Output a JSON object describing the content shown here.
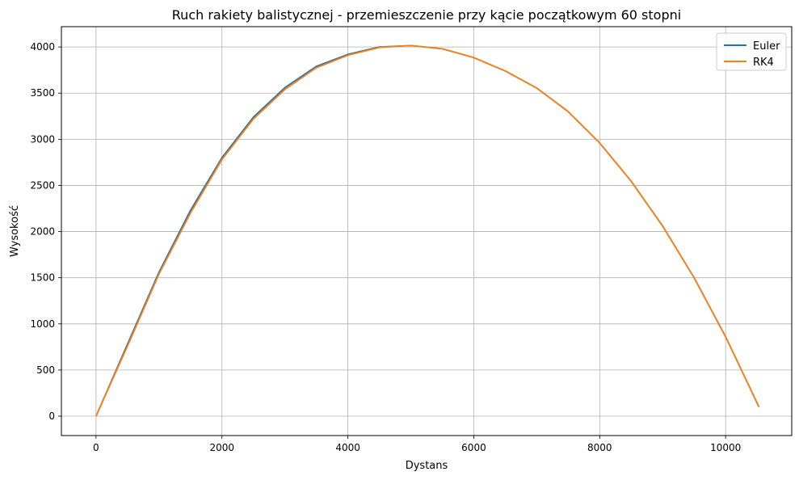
{
  "chart_data": {
    "type": "line",
    "title": "Ruch rakiety balistycznej - przemieszczenie przy kącie początkowym 60 stopni",
    "xlabel": "Dystans",
    "ylabel": "Wysokość",
    "xlim": [
      -550,
      11050
    ],
    "ylim": [
      -210,
      4220
    ],
    "xticks": [
      0,
      2000,
      4000,
      6000,
      8000,
      10000
    ],
    "yticks": [
      0,
      500,
      1000,
      1500,
      2000,
      2500,
      3000,
      3500,
      4000
    ],
    "grid": true,
    "legend_position": "top-right",
    "series": [
      {
        "name": "Euler",
        "color": "#1f77b4",
        "points": [
          [
            0,
            0
          ],
          [
            500,
            780
          ],
          [
            1000,
            1560
          ],
          [
            1500,
            2230
          ],
          [
            2000,
            2800
          ],
          [
            2500,
            3240
          ],
          [
            3000,
            3560
          ],
          [
            3500,
            3790
          ],
          [
            4000,
            3920
          ],
          [
            4500,
            4000
          ],
          [
            5000,
            4015
          ],
          [
            5500,
            3980
          ],
          [
            6000,
            3885
          ],
          [
            6500,
            3740
          ],
          [
            7000,
            3555
          ],
          [
            7500,
            3300
          ],
          [
            8000,
            2960
          ],
          [
            8500,
            2545
          ],
          [
            9000,
            2060
          ],
          [
            9500,
            1500
          ],
          [
            10000,
            860
          ],
          [
            10530,
            100
          ]
        ]
      },
      {
        "name": "RK4",
        "color": "#ff7f0e",
        "points": [
          [
            0,
            0
          ],
          [
            500,
            760
          ],
          [
            1000,
            1540
          ],
          [
            1500,
            2200
          ],
          [
            2000,
            2780
          ],
          [
            2500,
            3220
          ],
          [
            3000,
            3540
          ],
          [
            3500,
            3775
          ],
          [
            4000,
            3910
          ],
          [
            4500,
            3995
          ],
          [
            5000,
            4015
          ],
          [
            5500,
            3980
          ],
          [
            6000,
            3885
          ],
          [
            6500,
            3740
          ],
          [
            7000,
            3555
          ],
          [
            7500,
            3300
          ],
          [
            8000,
            2960
          ],
          [
            8500,
            2545
          ],
          [
            9000,
            2060
          ],
          [
            9500,
            1500
          ],
          [
            10000,
            860
          ],
          [
            10530,
            100
          ]
        ]
      }
    ]
  }
}
